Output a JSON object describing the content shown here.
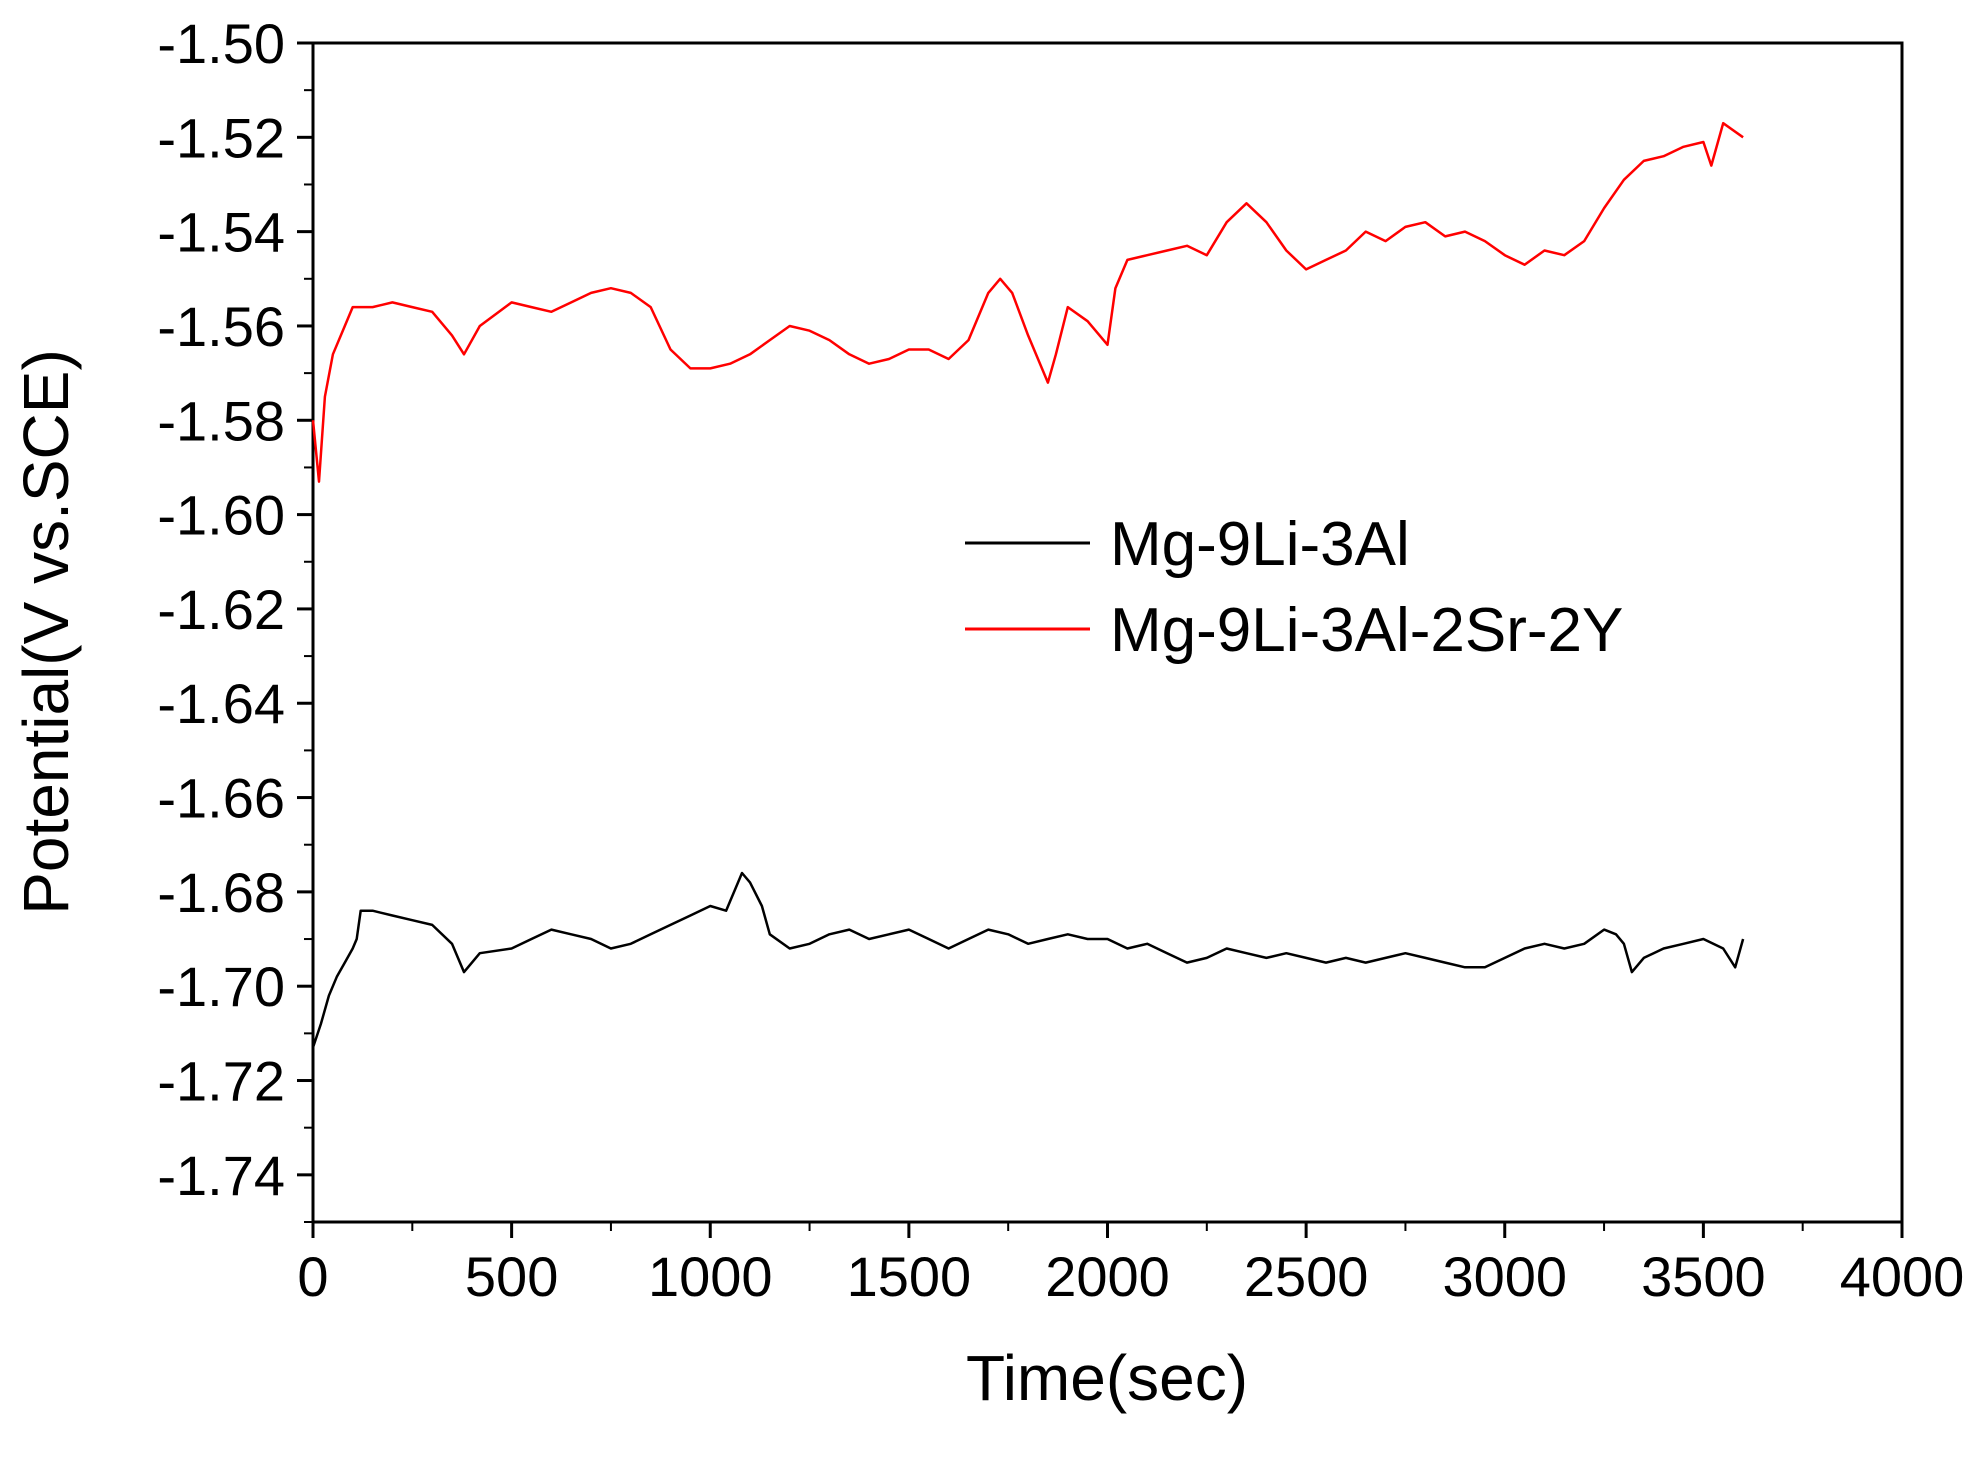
{
  "chart_data": {
    "type": "line",
    "title": "",
    "xlabel": "Time(sec)",
    "ylabel": "Potential(V vs.SCE)",
    "xlim": [
      0,
      4000
    ],
    "ylim": [
      -1.75,
      -1.5
    ],
    "x_ticks": [
      0,
      500,
      1000,
      1500,
      2000,
      2500,
      3000,
      3500,
      4000
    ],
    "x_tick_labels": [
      "0",
      "500",
      "1000",
      "1500",
      "2000",
      "2500",
      "3000",
      "3500",
      "4000"
    ],
    "y_ticks": [
      -1.5,
      -1.52,
      -1.54,
      -1.56,
      -1.58,
      -1.6,
      -1.62,
      -1.64,
      -1.66,
      -1.68,
      -1.7,
      -1.72,
      -1.74
    ],
    "y_tick_labels": [
      "-1.50",
      "-1.52",
      "-1.54",
      "-1.56",
      "-1.58",
      "-1.60",
      "-1.62",
      "-1.64",
      "-1.66",
      "-1.68",
      "-1.70",
      "-1.72",
      "-1.74"
    ],
    "grid": false,
    "legend_position": "center-right",
    "series": [
      {
        "name": "Mg-9Li-3Al",
        "color": "#000000",
        "x": [
          0,
          20,
          40,
          60,
          80,
          100,
          110,
          120,
          150,
          200,
          250,
          300,
          350,
          380,
          420,
          500,
          550,
          600,
          650,
          700,
          750,
          800,
          850,
          900,
          950,
          1000,
          1040,
          1050,
          1080,
          1100,
          1130,
          1150,
          1200,
          1250,
          1300,
          1350,
          1400,
          1450,
          1500,
          1550,
          1600,
          1650,
          1700,
          1750,
          1800,
          1850,
          1900,
          1950,
          2000,
          2050,
          2100,
          2150,
          2200,
          2250,
          2300,
          2350,
          2400,
          2450,
          2500,
          2550,
          2600,
          2650,
          2700,
          2750,
          2800,
          2850,
          2900,
          2950,
          3000,
          3050,
          3100,
          3150,
          3200,
          3250,
          3280,
          3300,
          3320,
          3350,
          3400,
          3450,
          3500,
          3550,
          3580,
          3600
        ],
        "values": [
          -1.713,
          -1.708,
          -1.702,
          -1.698,
          -1.695,
          -1.692,
          -1.69,
          -1.684,
          -1.684,
          -1.685,
          -1.686,
          -1.687,
          -1.691,
          -1.697,
          -1.693,
          -1.692,
          -1.69,
          -1.688,
          -1.689,
          -1.69,
          -1.692,
          -1.691,
          -1.689,
          -1.687,
          -1.685,
          -1.683,
          -1.684,
          -1.682,
          -1.676,
          -1.678,
          -1.683,
          -1.689,
          -1.692,
          -1.691,
          -1.689,
          -1.688,
          -1.69,
          -1.689,
          -1.688,
          -1.69,
          -1.692,
          -1.69,
          -1.688,
          -1.689,
          -1.691,
          -1.69,
          -1.689,
          -1.69,
          -1.69,
          -1.692,
          -1.691,
          -1.693,
          -1.695,
          -1.694,
          -1.692,
          -1.693,
          -1.694,
          -1.693,
          -1.694,
          -1.695,
          -1.694,
          -1.695,
          -1.694,
          -1.693,
          -1.694,
          -1.695,
          -1.696,
          -1.696,
          -1.694,
          -1.692,
          -1.691,
          -1.692,
          -1.691,
          -1.688,
          -1.689,
          -1.691,
          -1.697,
          -1.694,
          -1.692,
          -1.691,
          -1.69,
          -1.692,
          -1.696,
          -1.69
        ]
      },
      {
        "name": "Mg-9Li-3Al-2Sr-2Y",
        "color": "#ff0000",
        "x": [
          0,
          15,
          30,
          50,
          80,
          100,
          150,
          200,
          250,
          300,
          350,
          380,
          420,
          500,
          550,
          600,
          650,
          700,
          750,
          800,
          850,
          900,
          950,
          1000,
          1050,
          1100,
          1150,
          1200,
          1250,
          1300,
          1350,
          1400,
          1450,
          1500,
          1550,
          1600,
          1650,
          1700,
          1730,
          1760,
          1800,
          1850,
          1870,
          1900,
          1950,
          2000,
          2020,
          2050,
          2100,
          2150,
          2200,
          2250,
          2300,
          2350,
          2400,
          2450,
          2500,
          2550,
          2600,
          2650,
          2700,
          2750,
          2800,
          2850,
          2900,
          2950,
          3000,
          3050,
          3100,
          3150,
          3200,
          3250,
          3300,
          3350,
          3400,
          3450,
          3500,
          3520,
          3550,
          3600
        ],
        "values": [
          -1.58,
          -1.593,
          -1.575,
          -1.566,
          -1.56,
          -1.556,
          -1.556,
          -1.555,
          -1.556,
          -1.557,
          -1.562,
          -1.566,
          -1.56,
          -1.555,
          -1.556,
          -1.557,
          -1.555,
          -1.553,
          -1.552,
          -1.553,
          -1.556,
          -1.565,
          -1.569,
          -1.569,
          -1.568,
          -1.566,
          -1.563,
          -1.56,
          -1.561,
          -1.563,
          -1.566,
          -1.568,
          -1.567,
          -1.565,
          -1.565,
          -1.567,
          -1.563,
          -1.553,
          -1.55,
          -1.553,
          -1.562,
          -1.572,
          -1.566,
          -1.556,
          -1.559,
          -1.564,
          -1.552,
          -1.546,
          -1.545,
          -1.544,
          -1.543,
          -1.545,
          -1.538,
          -1.534,
          -1.538,
          -1.544,
          -1.548,
          -1.546,
          -1.544,
          -1.54,
          -1.542,
          -1.539,
          -1.538,
          -1.541,
          -1.54,
          -1.542,
          -1.545,
          -1.547,
          -1.544,
          -1.545,
          -1.542,
          -1.535,
          -1.529,
          -1.525,
          -1.524,
          -1.522,
          -1.521,
          -1.526,
          -1.517,
          -1.52
        ]
      }
    ]
  }
}
